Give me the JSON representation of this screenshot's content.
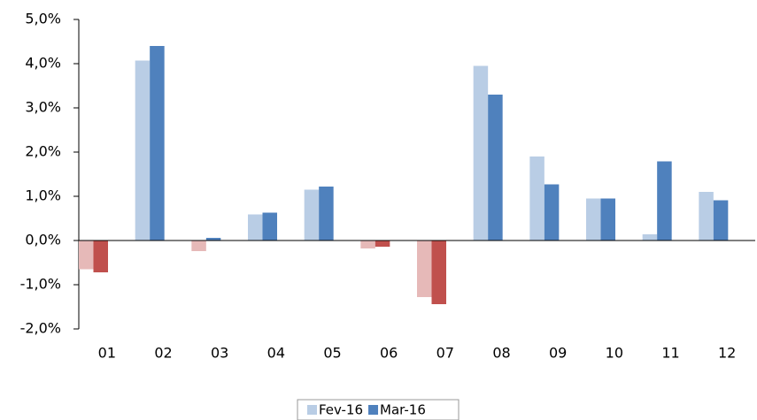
{
  "chart_data": {
    "type": "bar",
    "categories": [
      "01",
      "02",
      "03",
      "04",
      "05",
      "06",
      "07",
      "08",
      "09",
      "10",
      "11",
      "12"
    ],
    "series": [
      {
        "name": "Fev-16",
        "color": "#b9cde5",
        "negative_color": "#e6b9b8",
        "values": [
          -0.65,
          4.07,
          -0.24,
          0.59,
          1.15,
          -0.18,
          -1.28,
          3.95,
          1.9,
          0.95,
          0.14,
          1.1
        ]
      },
      {
        "name": "Mar-16",
        "color": "#4f81bd",
        "negative_color": "#c0504d",
        "values": [
          -0.72,
          4.4,
          0.06,
          0.63,
          1.22,
          -0.14,
          -1.44,
          3.3,
          1.27,
          0.95,
          1.79,
          0.91
        ]
      }
    ],
    "ylim": [
      -2,
      5
    ],
    "yticks": [
      {
        "value": -2,
        "label": "-2,0%"
      },
      {
        "value": -1,
        "label": "-1,0%"
      },
      {
        "value": 0,
        "label": "0,0%"
      },
      {
        "value": 1,
        "label": "1,0%"
      },
      {
        "value": 2,
        "label": "2,0%"
      },
      {
        "value": 3,
        "label": "3,0%"
      },
      {
        "value": 4,
        "label": "4,0%"
      },
      {
        "value": 5,
        "label": "5,0%"
      }
    ],
    "grid": false,
    "legend": "bottom"
  }
}
